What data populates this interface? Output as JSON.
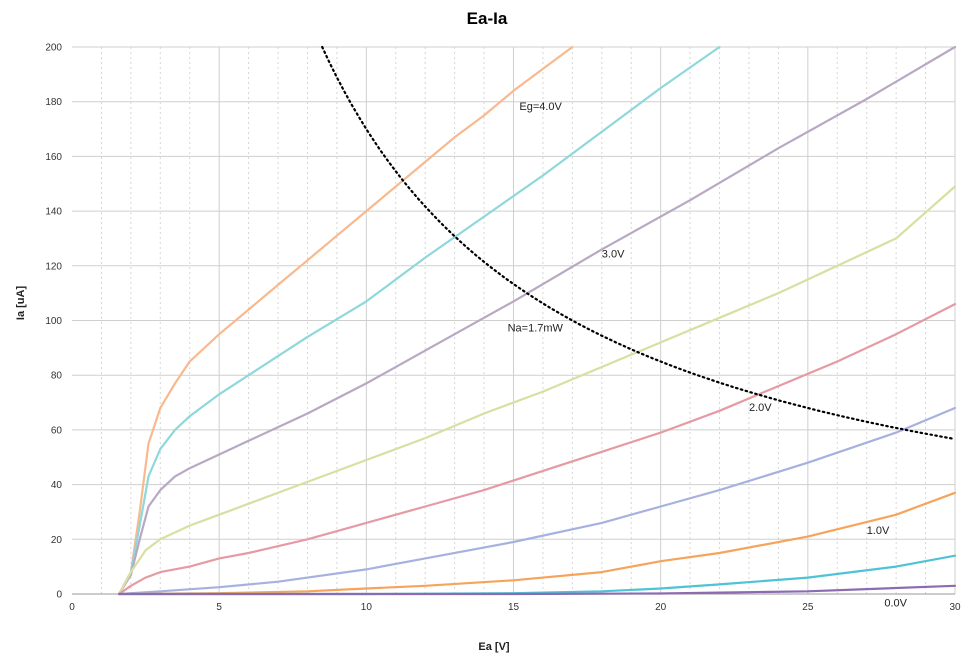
{
  "chart_data": {
    "type": "line",
    "title": "Ea-Ia",
    "xlabel": "Ea [V]",
    "ylabel": "Ia [uA]",
    "xlim": [
      0,
      30
    ],
    "ylim": [
      0,
      200
    ],
    "xticks": [
      0,
      5,
      10,
      15,
      20,
      25,
      30
    ],
    "yticks": [
      0,
      20,
      40,
      60,
      80,
      100,
      120,
      140,
      160,
      180,
      200
    ],
    "grid": true,
    "legend": "none",
    "series": [
      {
        "color": "#F9B98E",
        "x": [
          1.6,
          2.0,
          2.3,
          2.6,
          3.0,
          3.5,
          4.0,
          5.0,
          6.0,
          7.0,
          8.0,
          9.0,
          10.0,
          11.0,
          12.0,
          13.0,
          14.0,
          15.0,
          16.0,
          17.0
        ],
        "y": [
          0,
          8,
          30,
          55,
          68,
          77,
          85,
          95,
          104,
          113,
          122,
          131,
          140,
          149,
          158,
          167,
          175,
          184,
          192,
          200
        ]
      },
      {
        "color": "#8ED8DB",
        "x": [
          1.6,
          2.0,
          2.3,
          2.6,
          3.0,
          3.5,
          4.0,
          5.0,
          6.0,
          7.0,
          8.0,
          10.0,
          12.0,
          14.0,
          16.0,
          18.0,
          20.0,
          22.0
        ],
        "y": [
          0,
          8,
          25,
          43,
          53,
          60,
          65,
          73,
          80,
          87,
          94,
          107,
          123,
          138,
          153,
          169,
          185,
          200
        ]
      },
      {
        "color": "#B8A8C4",
        "x": [
          1.6,
          2.0,
          2.3,
          2.6,
          3.0,
          3.5,
          4.0,
          5.0,
          6.0,
          8.0,
          10.0,
          12.0,
          15.0,
          18.0,
          21.0,
          24.0,
          27.0,
          30.0
        ],
        "y": [
          0,
          7,
          20,
          32,
          38,
          43,
          46,
          51,
          56,
          66,
          77,
          89,
          107,
          126,
          144,
          163,
          181,
          200
        ]
      },
      {
        "color": "#D8DFA2",
        "x": [
          1.6,
          2.0,
          2.5,
          3.0,
          4.0,
          5.0,
          6.0,
          8.0,
          10.0,
          12.0,
          14.0,
          16.0,
          18.0,
          20.0,
          22.0,
          24.0,
          26.0,
          28.0,
          30.0
        ],
        "y": [
          0,
          8,
          16,
          20,
          25,
          29,
          33,
          41,
          49,
          57,
          66,
          74,
          83,
          92,
          101,
          110,
          120,
          130,
          149
        ]
      },
      {
        "color": "#E59AA4",
        "x": [
          1.6,
          2.0,
          2.5,
          3.0,
          4.0,
          5.0,
          6.0,
          8.0,
          10.0,
          12.0,
          14.0,
          16.0,
          18.0,
          20.0,
          22.0,
          24.0,
          26.0,
          28.0,
          30.0
        ],
        "y": [
          0,
          3,
          6,
          8,
          10,
          13,
          15,
          20,
          26,
          32,
          38,
          45,
          52,
          59,
          67,
          76,
          85,
          95,
          106
        ]
      },
      {
        "color": "#A7B1E0",
        "x": [
          1.6,
          3.0,
          5.0,
          7.0,
          10.0,
          12.0,
          15.0,
          18.0,
          20.0,
          22.0,
          25.0,
          28.0,
          30.0
        ],
        "y": [
          0,
          1,
          2.5,
          4.5,
          9,
          13,
          19,
          26,
          32,
          38,
          48,
          59,
          68
        ]
      },
      {
        "color": "#F6A45B",
        "x": [
          1.6,
          5.0,
          8.0,
          10.0,
          12.0,
          15.0,
          18.0,
          20.0,
          22.0,
          25.0,
          28.0,
          30.0
        ],
        "y": [
          0,
          0.3,
          1,
          2,
          3,
          5,
          8,
          12,
          15,
          21,
          29,
          37
        ]
      },
      {
        "color": "#4FC3D6",
        "x": [
          1.6,
          10.0,
          15.0,
          18.0,
          20.0,
          22.0,
          25.0,
          28.0,
          30.0
        ],
        "y": [
          0,
          0,
          0.3,
          1,
          2,
          3.5,
          6,
          10,
          14
        ]
      },
      {
        "color": "#8C6BB1",
        "x": [
          1.6,
          15.0,
          20.0,
          22.0,
          25.0,
          27.0,
          30.0
        ],
        "y": [
          0,
          0,
          0.2,
          0.5,
          1,
          1.8,
          3
        ]
      }
    ],
    "power_curve": {
      "watts": 0.0017,
      "x_start": 8.5,
      "x_end": 30,
      "color": "#000000"
    },
    "annotations": [
      {
        "text": "Eg=4.0V",
        "x": 15.2,
        "y": 177
      },
      {
        "text": "3.0V",
        "x": 18.0,
        "y": 123
      },
      {
        "text": "Na=1.7mW",
        "x": 14.8,
        "y": 96
      },
      {
        "text": "2.0V",
        "x": 23.0,
        "y": 67
      },
      {
        "text": "1.0V",
        "x": 27.0,
        "y": 22
      },
      {
        "text": "0.0V",
        "x": 27.6,
        "y": -4.5
      }
    ]
  }
}
